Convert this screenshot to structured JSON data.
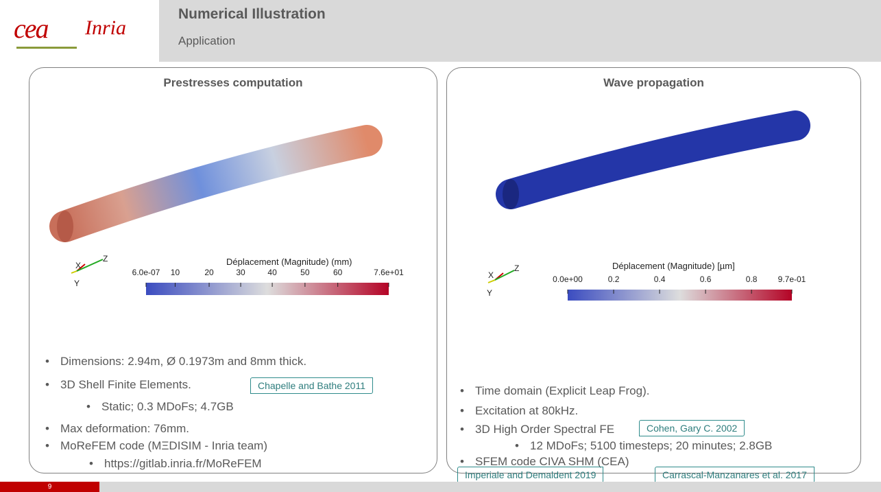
{
  "header": {
    "logo_cea": "cea",
    "logo_inria": "Inria",
    "title": "Numerical Illustration",
    "subtitle": "Application"
  },
  "panels": [
    {
      "title": "Prestresses computation",
      "colorbar": {
        "label": "Déplacement (Magnitude) (mm)",
        "ticks": [
          "6.0e-07",
          "10",
          "20",
          "30",
          "40",
          "50",
          "60",
          "7.6e+01"
        ]
      },
      "axes": [
        "X",
        "Y",
        "Z"
      ],
      "bullets": [
        "Dimensions: 2.94m, Ø 0.1973m and 8mm thick.",
        "3D Shell Finite Elements.",
        "Static; 0.3 MDoFs; 4.7GB",
        "Max deformation: 76mm.",
        "MoReFEM code (MΞDISIM - Inria team)",
        "https://gitlab.inria.fr/MoReFEM"
      ],
      "citations": [
        "Chapelle and Bathe 2011"
      ]
    },
    {
      "title": "Wave propagation",
      "colorbar": {
        "label": "Déplacement (Magnitude) [µm]",
        "ticks": [
          "0.0e+00",
          "0.2",
          "0.4",
          "0.6",
          "0.8",
          "9.7e-01"
        ]
      },
      "axes": [
        "X",
        "Y",
        "Z"
      ],
      "bullets": [
        "Time domain (Explicit Leap Frog).",
        "Excitation at 80kHz.",
        "3D High Order Spectral FE",
        "12 MDoFs; 5100 timesteps; 20 minutes; 2.8GB",
        "SFEM code CIVA SHM (CEA)"
      ],
      "citations": [
        "Cohen, Gary C. 2002",
        "Imperiale and Demaldent 2019",
        "Carrascal-Manzanares et al. 2017"
      ]
    }
  ],
  "footer": {
    "page": "9"
  }
}
